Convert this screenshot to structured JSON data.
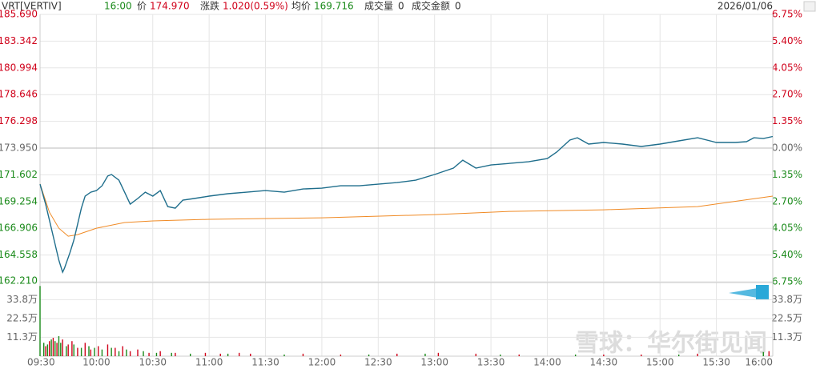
{
  "header": {
    "symbol": "VRT[VERTIV]",
    "time": "16:00",
    "price_label": "价",
    "price": "174.970",
    "change_label": "涨跌",
    "change": "1.020(0.59%)",
    "avg_label": "均价",
    "avg": "169.716",
    "volume_label": "成交量",
    "volume": "0",
    "amount_label": "成交金额",
    "amount": "0",
    "date": "2026/01/06"
  },
  "watermark": "雪球：华尔街见闻",
  "chart_data": {
    "type": "line",
    "xlim": [
      0,
      390
    ],
    "xticks": [
      {
        "value": 0,
        "label": "09:30"
      },
      {
        "value": 30,
        "label": "10:00"
      },
      {
        "value": 60,
        "label": "10:30"
      },
      {
        "value": 90,
        "label": "11:00"
      },
      {
        "value": 120,
        "label": "11:30"
      },
      {
        "value": 150,
        "label": "12:00"
      },
      {
        "value": 180,
        "label": "12:30"
      },
      {
        "value": 210,
        "label": "13:00"
      },
      {
        "value": 240,
        "label": "13:30"
      },
      {
        "value": 270,
        "label": "14:00"
      },
      {
        "value": 300,
        "label": "14:30"
      },
      {
        "value": 330,
        "label": "15:00"
      },
      {
        "value": 360,
        "label": "15:30"
      },
      {
        "value": 390,
        "label": "16:00"
      }
    ],
    "ylim": [
      162.21,
      185.69
    ],
    "base": 173.95,
    "yticks": [
      {
        "value": 185.69,
        "label": "185.690"
      },
      183.342,
      180.994,
      178.646,
      176.298,
      {
        "value": 173.95,
        "label": "173.950"
      },
      171.602,
      169.254,
      166.906,
      164.558,
      {
        "value": 162.21,
        "label": "162.210"
      }
    ],
    "y2lim": [
      -6.75,
      6.75
    ],
    "y2ticks": [
      {
        "value": 6.75,
        "label": "6.75%"
      },
      {
        "value": 5.4,
        "label": "5.40%"
      },
      {
        "value": 4.05,
        "label": "4.05%"
      },
      {
        "value": 2.7,
        "label": "2.70%"
      },
      {
        "value": 1.35,
        "label": "1.35%"
      },
      {
        "value": 0,
        "label": "0.00%"
      },
      {
        "value": -1.35,
        "label": "1.35%"
      },
      {
        "value": -2.7,
        "label": "2.70%"
      },
      {
        "value": -4.05,
        "label": "4.05%"
      },
      {
        "value": -5.4,
        "label": "5.40%"
      },
      {
        "value": -6.75,
        "label": "6.75%"
      }
    ],
    "up_color": "#d0021b",
    "down_color": "#1a8a1a",
    "flat_color": "#666666",
    "series": [
      {
        "color": "#1f6e8c",
        "x": [
          0,
          3,
          6,
          10,
          12,
          13,
          16,
          18,
          20,
          22,
          24,
          27,
          30,
          33,
          36,
          38,
          42,
          45,
          48,
          52,
          56,
          60,
          64,
          68,
          72,
          76,
          82,
          90,
          100,
          110,
          120,
          130,
          140,
          150,
          160,
          170,
          180,
          190,
          200,
          210,
          220,
          225,
          232,
          240,
          250,
          260,
          270,
          275,
          282,
          286,
          292,
          300,
          310,
          320,
          330,
          340,
          350,
          360,
          370,
          376,
          380,
          385,
          390
        ],
        "values": [
          170.78,
          169.02,
          166.91,
          164.1,
          163.05,
          163.4,
          164.8,
          165.86,
          167.26,
          168.67,
          169.73,
          170.08,
          170.22,
          170.64,
          171.5,
          171.63,
          171.13,
          170.08,
          169.02,
          169.52,
          170.08,
          169.73,
          170.22,
          168.81,
          168.67,
          169.38,
          169.52,
          169.73,
          169.94,
          170.08,
          170.22,
          170.08,
          170.36,
          170.43,
          170.64,
          170.64,
          170.78,
          170.92,
          171.13,
          171.63,
          172.19,
          172.89,
          172.19,
          172.47,
          172.61,
          172.75,
          173.03,
          173.6,
          174.65,
          174.86,
          174.3,
          174.44,
          174.3,
          174.09,
          174.3,
          174.58,
          174.86,
          174.44,
          174.44,
          174.51,
          174.86,
          174.79,
          174.97
        ]
      },
      {
        "color": "#f08a24",
        "x": [
          0,
          5,
          10,
          15,
          20,
          30,
          45,
          60,
          90,
          150,
          210,
          250,
          300,
          350,
          390
        ],
        "values": [
          170.8,
          168.32,
          166.91,
          166.21,
          166.35,
          166.91,
          167.41,
          167.55,
          167.69,
          167.83,
          168.11,
          168.39,
          168.53,
          168.81,
          169.73
        ]
      }
    ],
    "volume": {
      "ylim": [
        0,
        45
      ],
      "yticks": [
        {
          "value": 11.3,
          "label": "11.3万"
        },
        {
          "value": 22.5,
          "label": "22.5万"
        },
        {
          "value": 33.8,
          "label": "33.8万"
        }
      ],
      "up": {
        "x": [
          3,
          5,
          7,
          9,
          12,
          15,
          17,
          20,
          24,
          27,
          31,
          36,
          40,
          44,
          48,
          52,
          58,
          64,
          72,
          88,
          96,
          106,
          112,
          140,
          160,
          190,
          212,
          232,
          255,
          300,
          320,
          350,
          388
        ],
        "values": [
          6,
          9,
          11,
          8,
          10,
          7,
          9,
          5,
          8,
          4,
          6,
          7,
          5,
          6,
          3,
          4,
          2,
          3,
          2,
          2,
          1.5,
          2,
          1.5,
          1.5,
          1,
          1.5,
          2,
          1.5,
          1,
          1,
          1,
          1.5,
          3
        ]
      },
      "down": {
        "x": [
          0,
          2,
          4,
          6,
          8,
          10,
          11,
          14,
          18,
          22,
          26,
          29,
          33,
          38,
          42,
          46,
          55,
          62,
          70,
          80,
          100,
          130,
          175,
          205,
          245,
          285,
          340,
          385
        ],
        "values": [
          42,
          8,
          7,
          10,
          9,
          12,
          8,
          6,
          7,
          5,
          6,
          5,
          4,
          5,
          3,
          4,
          3,
          2,
          2,
          1.5,
          1.5,
          1,
          1,
          1.5,
          1,
          1,
          1,
          2.5
        ]
      }
    }
  }
}
